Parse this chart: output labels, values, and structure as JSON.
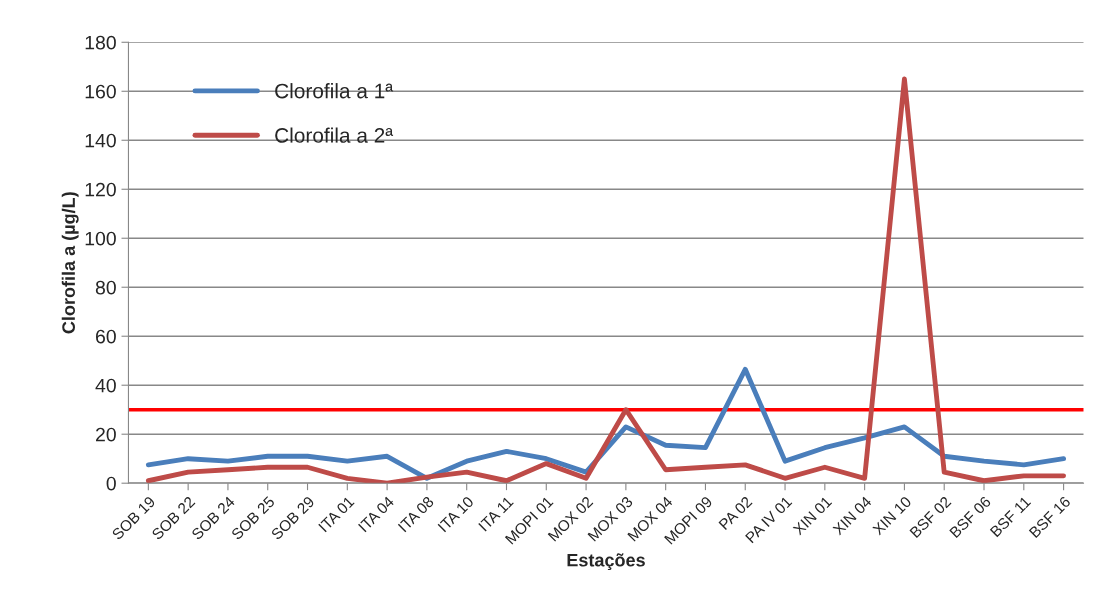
{
  "chart_data": {
    "type": "line",
    "xlabel": "Estações",
    "ylabel": "Clorofila a (µg/L)",
    "categories": [
      "SOB 19",
      "SOB 22",
      "SOB 24",
      "SOB 25",
      "SOB 29",
      "ITA 01",
      "ITA 04",
      "ITA 08",
      "ITA 10",
      "ITA 11",
      "MOPI 01",
      "MOX 02",
      "MOX 03",
      "MOX 04",
      "MOPI 09",
      "PA 02",
      "PA IV 01",
      "XIN 01",
      "XIN 04",
      "XIN 10",
      "BSF 02",
      "BSF 06",
      "BSF 11",
      "BSF 16"
    ],
    "series": [
      {
        "name": "Clorofila a 1ª",
        "color": "#4a7ebb",
        "values": [
          7.5,
          10,
          9,
          11,
          11,
          9,
          11,
          2,
          9,
          13,
          10,
          4.5,
          23,
          15.5,
          14.5,
          46.5,
          9,
          14.5,
          18.5,
          23,
          11,
          9,
          7.5,
          10
        ]
      },
      {
        "name": "Clorofila a 2ª",
        "color": "#be4b48",
        "values": [
          1,
          4.5,
          5.5,
          6.5,
          6.5,
          2,
          0,
          2.5,
          4.5,
          1,
          8,
          2,
          30,
          5.5,
          6.5,
          7.5,
          2,
          6.5,
          2,
          165,
          4.5,
          1,
          3,
          3
        ]
      }
    ],
    "ylim": [
      0,
      180
    ],
    "yticks": [
      0,
      20,
      40,
      60,
      80,
      100,
      120,
      140,
      160,
      180
    ],
    "ref_lines": [
      {
        "axis": "y",
        "value": 30,
        "color": "#ff0000"
      }
    ],
    "grid": "y",
    "legend": "top left",
    "marker": "none",
    "line_style": "solid"
  }
}
